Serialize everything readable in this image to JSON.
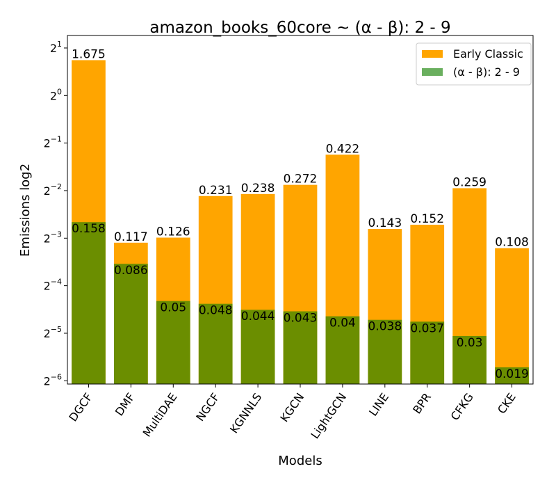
{
  "chart_data": {
    "type": "bar",
    "title": "amazon_books_60core ~ (α - β): 2 - 9",
    "xlabel": "Models",
    "ylabel": "Emissions log2",
    "yscale": "log2",
    "ylim": [
      0.0149,
      2.4
    ],
    "ytick_base": "2",
    "yticks": [
      "-6",
      "-5",
      "-4",
      "-3",
      "-2",
      "-1",
      "0",
      "1"
    ],
    "categories": [
      "DGCF",
      "DMF",
      "MultiDAE",
      "NGCF",
      "KGNNLS",
      "KGCN",
      "LightGCN",
      "LINE",
      "BPR",
      "CFKG",
      "CKE"
    ],
    "series": [
      {
        "name": "Early Classic",
        "color": "#ffa500",
        "values": [
          1.675,
          0.117,
          0.126,
          0.231,
          0.238,
          0.272,
          0.422,
          0.143,
          0.152,
          0.259,
          0.108
        ],
        "labels": [
          "1.675",
          "0.117",
          "0.126",
          "0.231",
          "0.238",
          "0.272",
          "0.422",
          "0.143",
          "0.152",
          "0.259",
          "0.108"
        ]
      },
      {
        "name": "(α - β): 2 - 9",
        "color": "#6b8e00",
        "values": [
          0.158,
          0.086,
          0.05,
          0.048,
          0.044,
          0.043,
          0.04,
          0.038,
          0.037,
          0.03,
          0.019
        ],
        "labels": [
          "0.158",
          "0.086",
          "0.05",
          "0.048",
          "0.044",
          "0.043",
          "0.04",
          "0.038",
          "0.037",
          "0.03",
          "0.019"
        ]
      }
    ],
    "legend": {
      "position": "top-right",
      "items": [
        {
          "label": "Early Classic",
          "color": "#ffa500"
        },
        {
          "label": "(α - β): 2 - 9",
          "color": "#6aaf5e"
        }
      ]
    },
    "grid": false
  }
}
